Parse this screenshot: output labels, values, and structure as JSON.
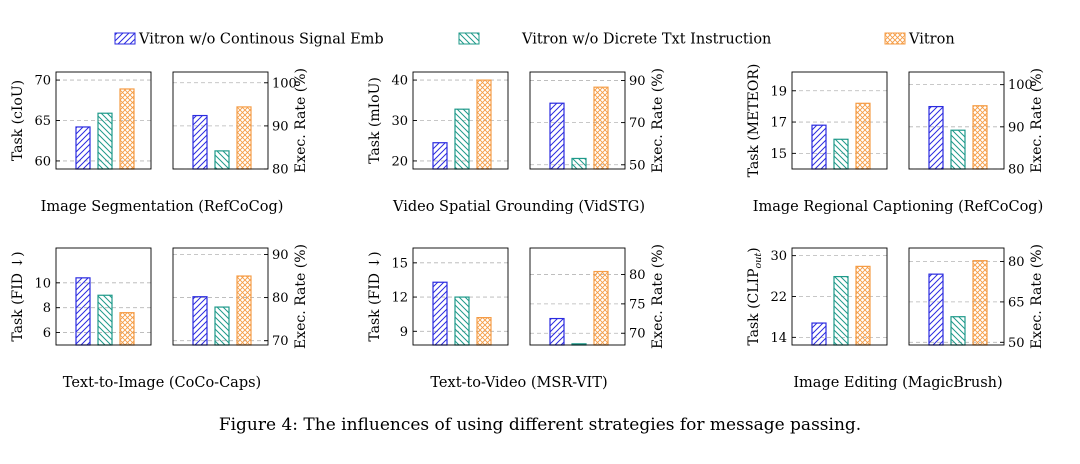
{
  "legend": {
    "items": [
      {
        "label": "Vitron w/o Continous Signal Emb",
        "color": "#2b2be0",
        "pattern": "hatch-up"
      },
      {
        "label": "Vitron w/o Dicrete Txt Instruction",
        "color": "#1f9a8a",
        "pattern": "hatch-down"
      },
      {
        "label": "Vitron",
        "color": "#f59c45",
        "pattern": "crosshatch"
      }
    ]
  },
  "figure_caption": "Figure 4: The influences of using different strategies for message passing.",
  "chart_data": [
    {
      "type": "bar",
      "caption": "Image Segmentation (RefCoCog)",
      "task": {
        "ylabel": "Task (cIoU)",
        "ylim": [
          59,
          71
        ],
        "ticks": [
          60,
          65,
          70
        ],
        "values": [
          64.2,
          65.9,
          68.9
        ]
      },
      "exec": {
        "ylabel": "Exec. Rate (%)",
        "ylim": [
          80,
          102.5
        ],
        "ticks": [
          80,
          90,
          100
        ],
        "values": [
          92.4,
          84.2,
          94.4
        ]
      }
    },
    {
      "type": "bar",
      "caption": "Video Spatial Grounding (VidSTG)",
      "task": {
        "ylabel": "Task (mIoU)",
        "ylim": [
          18,
          42
        ],
        "ticks": [
          20,
          30,
          40
        ],
        "values": [
          24.5,
          32.8,
          40.0
        ]
      },
      "exec": {
        "ylabel": "Exec. Rate (%)",
        "ylim": [
          48,
          94
        ],
        "ticks": [
          50,
          70,
          90
        ],
        "values": [
          79.2,
          53.0,
          86.8
        ]
      }
    },
    {
      "type": "bar",
      "caption": "Image Regional Captioning (RefCoCog)",
      "task": {
        "ylabel": "Task (METEOR)",
        "ylim": [
          14,
          20.2
        ],
        "ticks": [
          15,
          17,
          19
        ],
        "values": [
          16.8,
          15.9,
          18.2
        ]
      },
      "exec": {
        "ylabel": "Exec. Rate (%)",
        "ylim": [
          80,
          103
        ],
        "ticks": [
          80,
          90,
          100
        ],
        "values": [
          94.8,
          89.2,
          95.0
        ]
      }
    },
    {
      "type": "bar",
      "caption": "Text-to-Image (CoCo-Caps)",
      "task": {
        "ylabel": "Task (FID ↓)",
        "ylim": [
          5,
          12.8
        ],
        "ticks": [
          6,
          8,
          10
        ],
        "values": [
          10.4,
          9.0,
          7.6
        ]
      },
      "exec": {
        "ylabel": "Exec. Rate (%)",
        "ylim": [
          69,
          91.5
        ],
        "ticks": [
          70,
          80,
          90
        ],
        "values": [
          80.2,
          77.8,
          85.0
        ]
      }
    },
    {
      "type": "bar",
      "caption": "Text-to-Video (MSR-VIT)",
      "task": {
        "ylabel": "Task (FID ↓)",
        "ylim": [
          7.8,
          16.3
        ],
        "ticks": [
          9,
          12,
          15
        ],
        "values": [
          13.3,
          12.0,
          10.2
        ]
      },
      "exec": {
        "ylabel": "Exec. Rate (%)",
        "ylim": [
          68,
          84.5
        ],
        "ticks": [
          70,
          75,
          80
        ],
        "values": [
          72.5,
          68.2,
          80.5
        ]
      }
    },
    {
      "type": "bar",
      "caption": "Image Editing (MagicBrush)",
      "task": {
        "ylabel": "Task (CLIP",
        "ylabel_sub": "out",
        "ylabel_end": ")",
        "ylim": [
          12.5,
          31.5
        ],
        "ticks": [
          14,
          22,
          30
        ],
        "values": [
          16.8,
          25.9,
          27.9
        ]
      },
      "exec": {
        "ylabel": "Exec. Rate (%)",
        "ylim": [
          49,
          85
        ],
        "ticks": [
          50,
          65,
          80
        ],
        "values": [
          75.3,
          59.5,
          80.3
        ]
      }
    }
  ]
}
